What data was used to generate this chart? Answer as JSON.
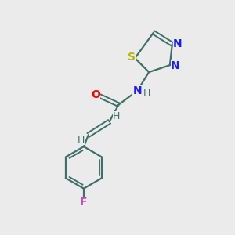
{
  "bg_color": "#ebebeb",
  "bond_color": "#3d7068",
  "N_color": "#1a1aff",
  "S_color": "#b8b800",
  "O_color": "#ff0000",
  "F_color": "#cc44bb",
  "H_color": "#3d7068",
  "figsize": [
    3.0,
    3.0
  ],
  "dpi": 100,
  "xlim": [
    0,
    10
  ],
  "ylim": [
    0,
    10
  ]
}
